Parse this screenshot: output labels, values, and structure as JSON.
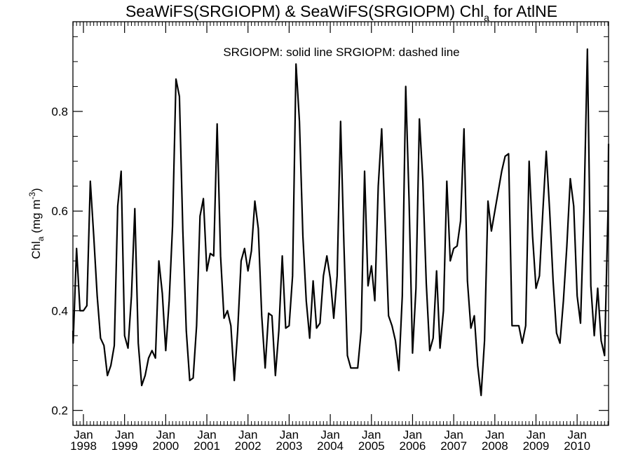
{
  "chart_data": {
    "type": "line",
    "title": {
      "main": "SeaWiFS(SRGIOPM) & SeaWiFS(SRGIOPM)  Chl",
      "sub": "a",
      "tail": " for AtlNE"
    },
    "legend_text": "SRGIOPM: solid line   SRGIOPM: dashed line",
    "ylabel": {
      "base": "Chl",
      "sub": "a",
      "unit_open": " (mg m",
      "sup": "-3",
      "unit_close": ")"
    },
    "y_ticks": [
      "0.2",
      "0.4",
      "0.6",
      "0.8"
    ],
    "ylim": [
      0.17,
      0.98
    ],
    "x_ticks": [
      {
        "month": "Jan",
        "year": "1998"
      },
      {
        "month": "Jan",
        "year": "1999"
      },
      {
        "month": "Jan",
        "year": "2000"
      },
      {
        "month": "Jan",
        "year": "2001"
      },
      {
        "month": "Jan",
        "year": "2002"
      },
      {
        "month": "Jan",
        "year": "2003"
      },
      {
        "month": "Jan",
        "year": "2004"
      },
      {
        "month": "Jan",
        "year": "2005"
      },
      {
        "month": "Jan",
        "year": "2006"
      },
      {
        "month": "Jan",
        "year": "2007"
      },
      {
        "month": "Jan",
        "year": "2008"
      },
      {
        "month": "Jan",
        "year": "2009"
      },
      {
        "month": "Jan",
        "year": "2010"
      }
    ],
    "x_start": "1997-09",
    "series": [
      {
        "line_color": "#000000",
        "values": [
          0.36,
          0.335,
          0.525,
          0.4,
          0.4,
          0.41,
          0.66,
          0.55,
          0.43,
          0.345,
          0.33,
          0.27,
          0.29,
          0.33,
          0.61,
          0.68,
          0.35,
          0.325,
          0.43,
          0.605,
          0.335,
          0.25,
          0.27,
          0.305,
          0.32,
          0.305,
          0.5,
          0.435,
          0.32,
          0.42,
          0.57,
          0.865,
          0.83,
          0.56,
          0.36,
          0.26,
          0.265,
          0.37,
          0.59,
          0.625,
          0.48,
          0.515,
          0.51,
          0.775,
          0.51,
          0.385,
          0.4,
          0.37,
          0.26,
          0.36,
          0.5,
          0.525,
          0.48,
          0.52,
          0.62,
          0.565,
          0.39,
          0.285,
          0.395,
          0.39,
          0.27,
          0.36,
          0.51,
          0.365,
          0.37,
          0.47,
          0.895,
          0.78,
          0.55,
          0.42,
          0.345,
          0.46,
          0.365,
          0.375,
          0.47,
          0.51,
          0.465,
          0.385,
          0.47,
          0.78,
          0.53,
          0.31,
          0.285,
          0.285,
          0.285,
          0.36,
          0.68,
          0.45,
          0.49,
          0.42,
          0.65,
          0.765,
          0.58,
          0.39,
          0.37,
          0.34,
          0.28,
          0.43,
          0.85,
          0.62,
          0.315,
          0.445,
          0.785,
          0.66,
          0.455,
          0.32,
          0.345,
          0.48,
          0.325,
          0.4,
          0.66,
          0.5,
          0.525,
          0.53,
          0.58,
          0.765,
          0.46,
          0.365,
          0.39,
          0.29,
          0.23,
          0.34,
          0.62,
          0.56,
          0.6,
          0.64,
          0.68,
          0.71,
          0.715,
          0.37,
          0.37,
          0.37,
          0.335,
          0.37,
          0.7,
          0.55,
          0.445,
          0.47,
          0.6,
          0.72,
          0.6,
          0.46,
          0.355,
          0.335,
          0.42,
          0.53,
          0.665,
          0.61,
          0.43,
          0.375,
          0.6,
          0.925,
          0.45,
          0.35,
          0.445,
          0.34,
          0.31,
          0.6,
          0.735
        ]
      }
    ]
  }
}
